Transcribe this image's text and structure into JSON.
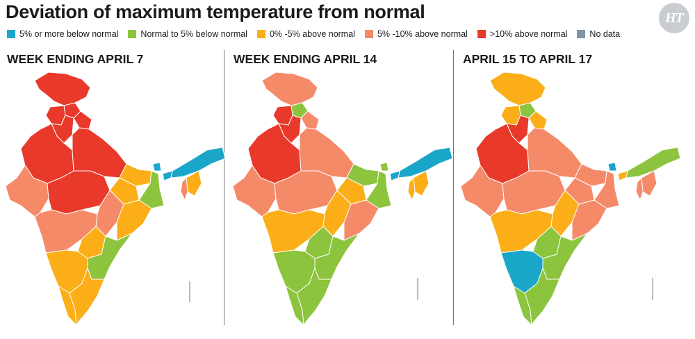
{
  "title": "Deviation of maximum temperature from normal",
  "logo": "HT",
  "legend": [
    {
      "label": "5% or more below normal",
      "color": "#1aa6c9"
    },
    {
      "label": "Normal to 5% below normal",
      "color": "#8cc43d"
    },
    {
      "label": "0% -5% above normal",
      "color": "#fbae17"
    },
    {
      "label": "5% -10% above normal",
      "color": "#f58a69"
    },
    {
      "label": ">10% above normal",
      "color": "#e8392a"
    },
    {
      "label": "No data",
      "color": "#7f95a8"
    }
  ],
  "panels": [
    {
      "title": "WEEK ENDING APRIL 7",
      "regions": {
        "jk": "r",
        "hp": "r",
        "pb": "r",
        "uk": "r",
        "hr": "r",
        "up": "r",
        "rj": "r",
        "gj": "s",
        "mp": "r",
        "cg": "s",
        "bh": "o",
        "jh": "o",
        "wb": "g",
        "od": "o",
        "mh": "s",
        "tg": "o",
        "ap": "g",
        "ka": "o",
        "kl": "o",
        "tn": "o",
        "ne": "b",
        "nei": "b",
        "nes": "o",
        "ner": "s",
        "sk": "b"
      }
    },
    {
      "title": "WEEK ENDING APRIL 14",
      "regions": {
        "jk": "s",
        "hp": "g",
        "pb": "r",
        "uk": "s",
        "hr": "r",
        "up": "s",
        "rj": "r",
        "gj": "s",
        "mp": "s",
        "cg": "o",
        "bh": "g",
        "jh": "o",
        "wb": "g",
        "od": "s",
        "mh": "o",
        "tg": "g",
        "ap": "g",
        "ka": "g",
        "kl": "g",
        "tn": "g",
        "ne": "b",
        "nei": "b",
        "nes": "o",
        "ner": "o",
        "sk": "g"
      }
    },
    {
      "title": "APRIL 15 TO APRIL 17",
      "regions": {
        "jk": "o",
        "hp": "g",
        "pb": "o",
        "uk": "o",
        "hr": "r",
        "up": "s",
        "rj": "r",
        "gj": "s",
        "mp": "s",
        "cg": "o",
        "bh": "s",
        "jh": "s",
        "wb": "s",
        "od": "s",
        "mh": "o",
        "tg": "g",
        "ap": "g",
        "ka": "b",
        "kl": "g",
        "tn": "g",
        "ne": "g",
        "nei": "o",
        "nes": "s",
        "ner": "s",
        "sk": "b"
      }
    }
  ]
}
